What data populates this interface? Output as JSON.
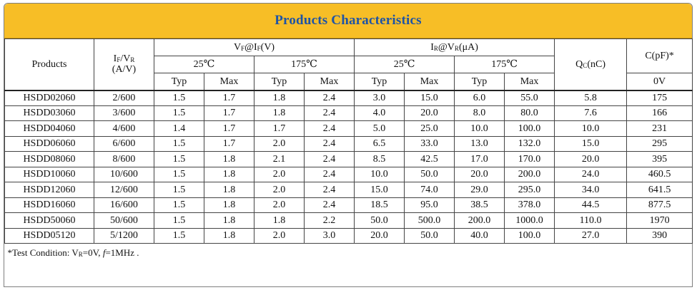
{
  "title": "Products Characteristics",
  "headers": {
    "products": "Products",
    "if_vr_line1": "IF/VR",
    "if_vr_line2": "(A/V)",
    "vf_group": "VF@IF(V)",
    "ir_group": "IR@VR(μA)",
    "qc": "QC(nC)",
    "c": "C(pF)*",
    "temp_25": "25℃",
    "temp_175": "175℃",
    "typ": "Typ",
    "max": "Max",
    "c_sub": "0V"
  },
  "rows": [
    {
      "product": "HSDD02060",
      "ifvr": "2/600",
      "vf25typ": "1.5",
      "vf25max": "1.7",
      "vf175typ": "1.8",
      "vf175max": "2.4",
      "ir25typ": "3.0",
      "ir25max": "15.0",
      "ir175typ": "6.0",
      "ir175max": "55.0",
      "qc": "5.8",
      "c": "175"
    },
    {
      "product": "HSDD03060",
      "ifvr": "3/600",
      "vf25typ": "1.5",
      "vf25max": "1.7",
      "vf175typ": "1.8",
      "vf175max": "2.4",
      "ir25typ": "4.0",
      "ir25max": "20.0",
      "ir175typ": "8.0",
      "ir175max": "80.0",
      "qc": "7.6",
      "c": "166"
    },
    {
      "product": "HSDD04060",
      "ifvr": "4/600",
      "vf25typ": "1.4",
      "vf25max": "1.7",
      "vf175typ": "1.7",
      "vf175max": "2.4",
      "ir25typ": "5.0",
      "ir25max": "25.0",
      "ir175typ": "10.0",
      "ir175max": "100.0",
      "qc": "10.0",
      "c": "231"
    },
    {
      "product": "HSDD06060",
      "ifvr": "6/600",
      "vf25typ": "1.5",
      "vf25max": "1.7",
      "vf175typ": "2.0",
      "vf175max": "2.4",
      "ir25typ": "6.5",
      "ir25max": "33.0",
      "ir175typ": "13.0",
      "ir175max": "132.0",
      "qc": "15.0",
      "c": "295"
    },
    {
      "product": "HSDD08060",
      "ifvr": "8/600",
      "vf25typ": "1.5",
      "vf25max": "1.8",
      "vf175typ": "2.1",
      "vf175max": "2.4",
      "ir25typ": "8.5",
      "ir25max": "42.5",
      "ir175typ": "17.0",
      "ir175max": "170.0",
      "qc": "20.0",
      "c": "395"
    },
    {
      "product": "HSDD10060",
      "ifvr": "10/600",
      "vf25typ": "1.5",
      "vf25max": "1.8",
      "vf175typ": "2.0",
      "vf175max": "2.4",
      "ir25typ": "10.0",
      "ir25max": "50.0",
      "ir175typ": "20.0",
      "ir175max": "200.0",
      "qc": "24.0",
      "c": "460.5"
    },
    {
      "product": "HSDD12060",
      "ifvr": "12/600",
      "vf25typ": "1.5",
      "vf25max": "1.8",
      "vf175typ": "2.0",
      "vf175max": "2.4",
      "ir25typ": "15.0",
      "ir25max": "74.0",
      "ir175typ": "29.0",
      "ir175max": "295.0",
      "qc": "34.0",
      "c": "641.5"
    },
    {
      "product": "HSDD16060",
      "ifvr": "16/600",
      "vf25typ": "1.5",
      "vf25max": "1.8",
      "vf175typ": "2.0",
      "vf175max": "2.4",
      "ir25typ": "18.5",
      "ir25max": "95.0",
      "ir175typ": "38.5",
      "ir175max": "378.0",
      "qc": "44.5",
      "c": "877.5"
    },
    {
      "product": "HSDD50060",
      "ifvr": "50/600",
      "vf25typ": "1.5",
      "vf25max": "1.8",
      "vf175typ": "1.8",
      "vf175max": "2.2",
      "ir25typ": "50.0",
      "ir25max": "500.0",
      "ir175typ": "200.0",
      "ir175max": "1000.0",
      "qc": "110.0",
      "c": "1970"
    },
    {
      "product": "HSDD05120",
      "ifvr": "5/1200",
      "vf25typ": "1.5",
      "vf25max": "1.8",
      "vf175typ": "2.0",
      "vf175max": "3.0",
      "ir25typ": "20.0",
      "ir25max": "50.0",
      "ir175typ": "40.0",
      "ir175max": "100.0",
      "qc": "27.0",
      "c": "390"
    }
  ],
  "note": "*Test Condition: VR=0V, f=1MHz ."
}
